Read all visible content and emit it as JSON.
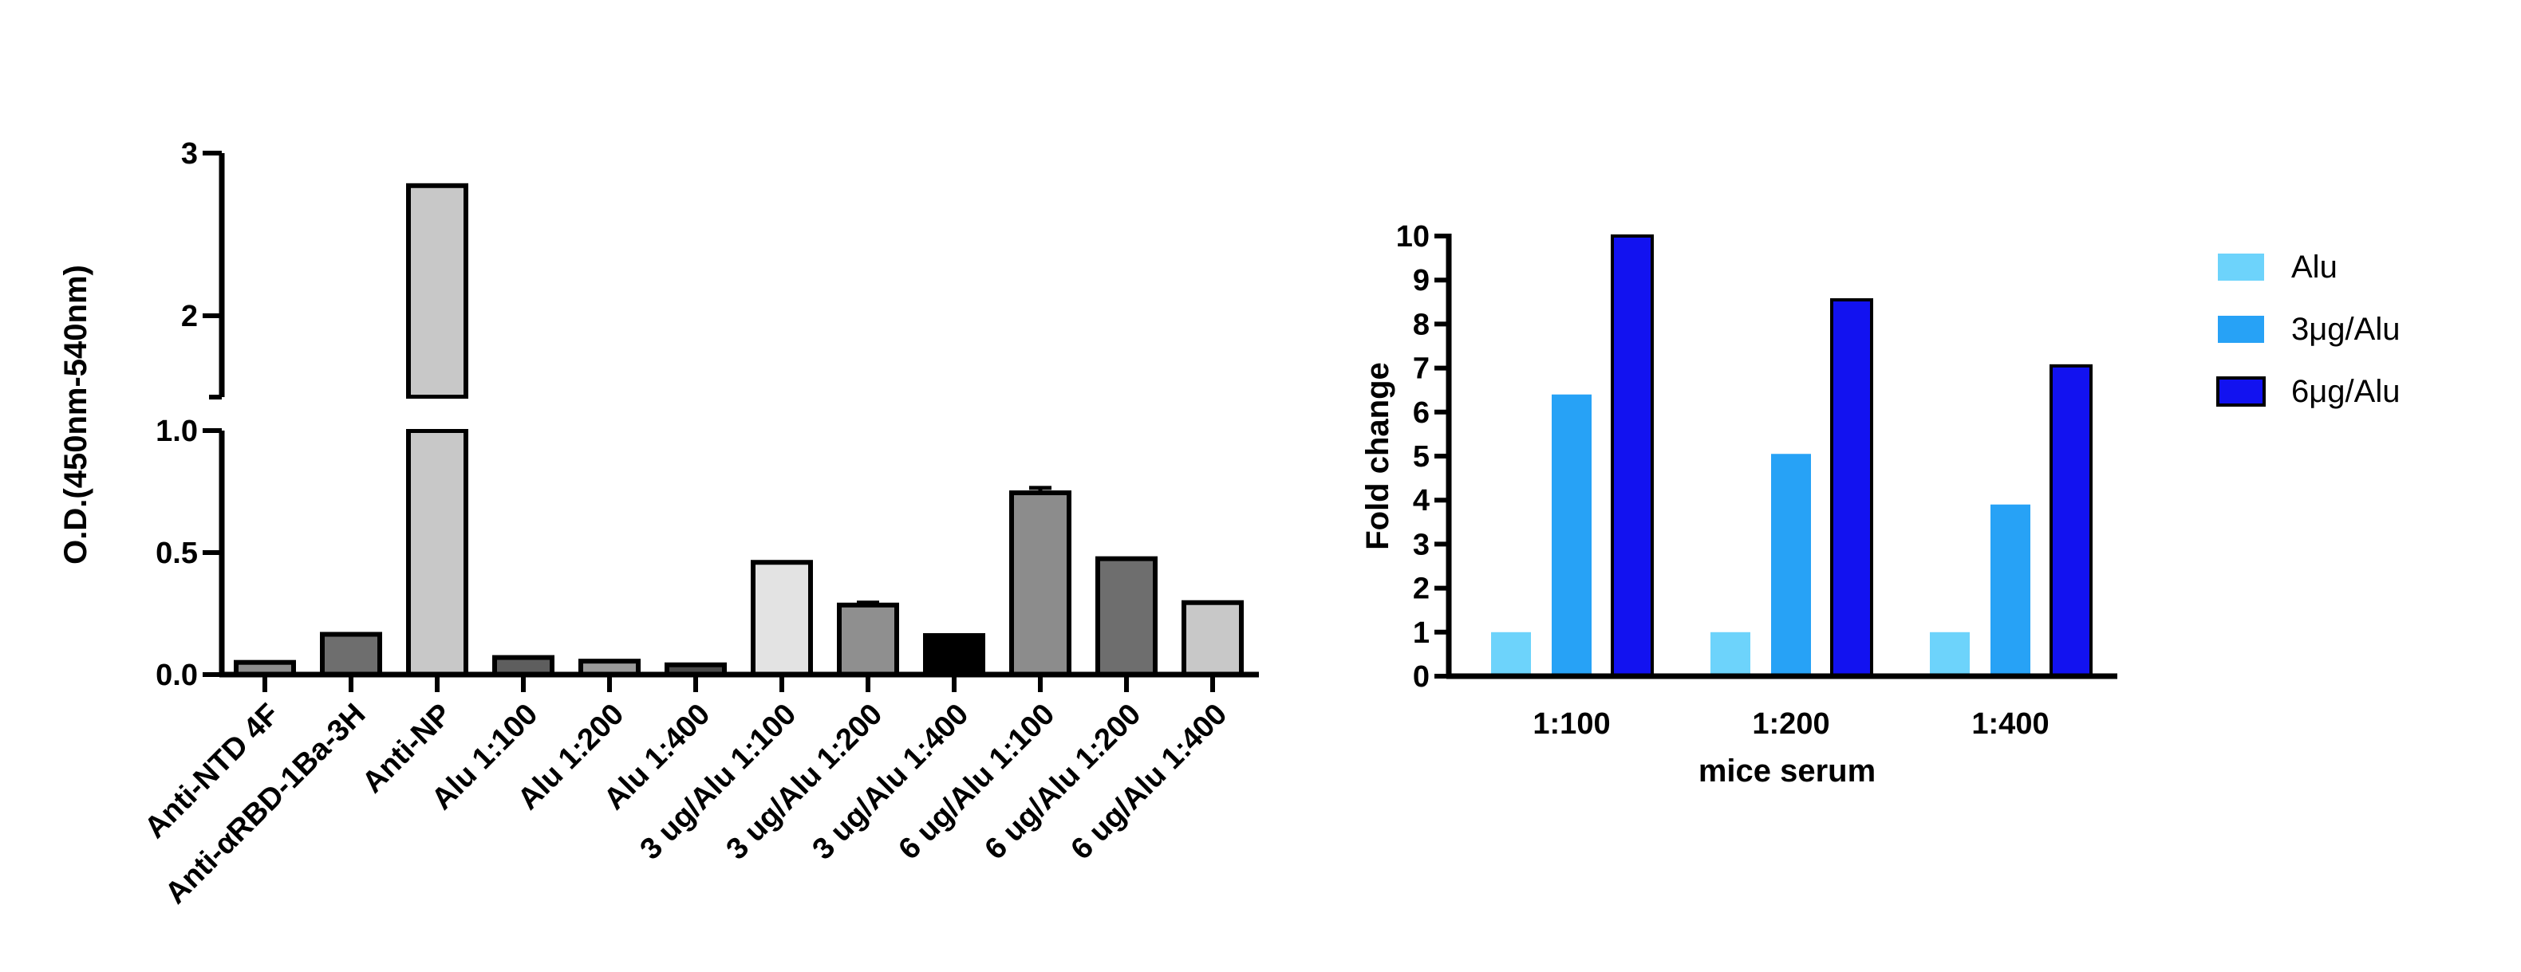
{
  "chart_data": [
    {
      "type": "bar",
      "title": "",
      "xlabel": "",
      "ylabel": "O.D.(450nm-540nm)",
      "y_axis_break": {
        "lower_range": [
          0,
          1.0
        ],
        "upper_range": [
          1.5,
          3
        ]
      },
      "ylim": [
        0,
        3
      ],
      "y_ticks_lower": [
        "0.0",
        "0.5",
        "1.0"
      ],
      "y_ticks_upper": [
        "2",
        "3"
      ],
      "grid": false,
      "categories": [
        "Anti-NTD 4F",
        "Anti-αRBD-1Ba-3H",
        "Anti-NP",
        "Alu 1:100",
        "Alu 1:200",
        "Alu 1:400",
        "3 ug/Alu 1:100",
        "3 ug/Alu 1:200",
        "3 ug/Alu 1:400",
        "6 ug/Alu 1:100",
        "6 ug/Alu 1:200",
        "6 ug/Alu 1:400"
      ],
      "values": [
        0.05,
        0.165,
        2.8,
        0.07,
        0.055,
        0.04,
        0.46,
        0.285,
        0.16,
        0.745,
        0.475,
        0.295
      ],
      "errors": [
        0,
        0,
        0,
        0,
        0,
        0,
        0,
        0.01,
        0,
        0.02,
        0,
        0
      ],
      "bar_colors": [
        "#8c8c8c",
        "#6e6e6e",
        "#c8c8c8",
        "#5e5e5e",
        "#9a9a9a",
        "#4a4a4a",
        "#e3e3e3",
        "#8f8f8f",
        "#000000",
        "#8c8c8c",
        "#6e6e6e",
        "#c8c8c8"
      ]
    },
    {
      "type": "bar",
      "title": "",
      "xlabel": "mice serum",
      "ylabel": "Fold change",
      "ylim": [
        0,
        10
      ],
      "y_ticks": [
        "0",
        "1",
        "2",
        "3",
        "4",
        "5",
        "6",
        "7",
        "8",
        "9",
        "10"
      ],
      "grid": false,
      "legend_position": "top-right",
      "categories": [
        "1:100",
        "1:200",
        "1:400"
      ],
      "series": [
        {
          "name": "Alu",
          "values": [
            1,
            1,
            1
          ],
          "color": "#6dd3fb"
        },
        {
          "name": "3μg/Alu",
          "values": [
            6.4,
            5.05,
            3.9
          ],
          "color": "#27a2f6"
        },
        {
          "name": "6μg/Alu",
          "values": [
            10,
            8.55,
            7.05
          ],
          "color": "#1212f0"
        }
      ]
    }
  ]
}
